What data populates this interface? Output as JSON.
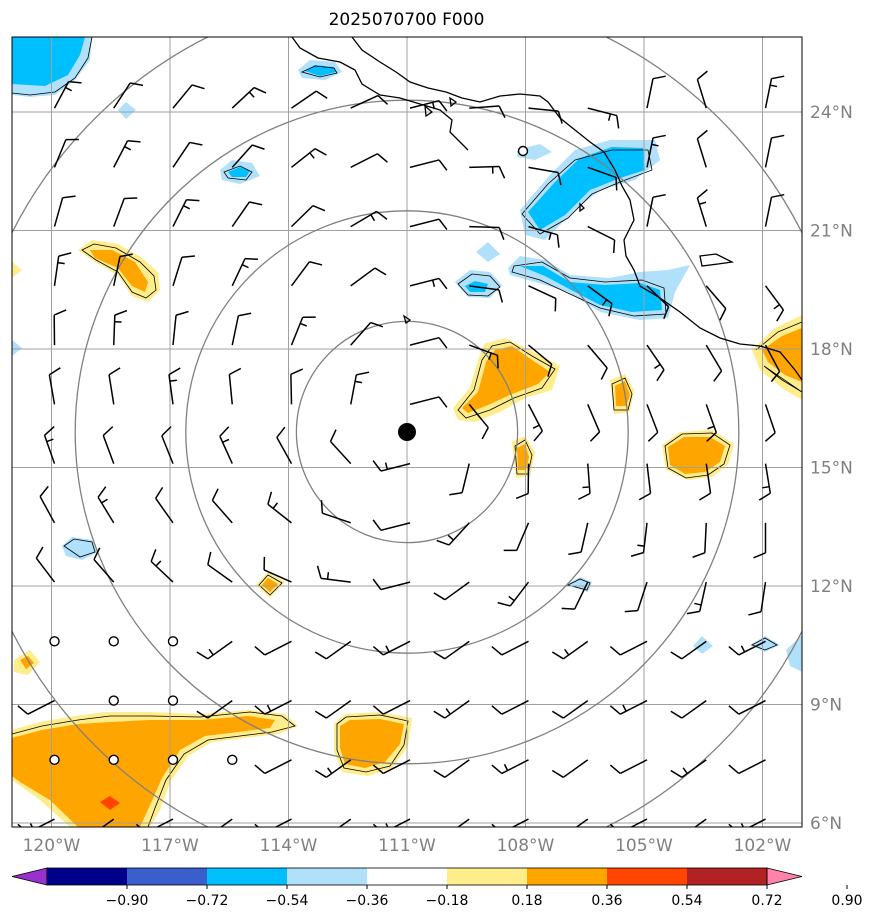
{
  "title": "2025070700 F000",
  "map": {
    "lon_range": [
      -121,
      -101
    ],
    "lat_range": [
      5.9,
      25.9
    ],
    "center": {
      "lon": -111.0,
      "lat": 15.9
    },
    "ring_radii_deg": [
      2.8,
      5.6,
      8.4,
      11.2
    ],
    "lat_ticks": [
      {
        "value": 24,
        "label": "24°N"
      },
      {
        "value": 21,
        "label": "21°N"
      },
      {
        "value": 18,
        "label": "18°N"
      },
      {
        "value": 15,
        "label": "15°N"
      },
      {
        "value": 12,
        "label": "12°N"
      },
      {
        "value": 9,
        "label": "9°N"
      },
      {
        "value": 6,
        "label": "6°N"
      }
    ],
    "lon_ticks": [
      {
        "value": -120,
        "label": "120°W"
      },
      {
        "value": -117,
        "label": "117°W"
      },
      {
        "value": -114,
        "label": "114°W"
      },
      {
        "value": -111,
        "label": "111°W"
      },
      {
        "value": -108,
        "label": "108°W"
      },
      {
        "value": -105,
        "label": "105°W"
      },
      {
        "value": -102,
        "label": "102°W"
      }
    ],
    "colors": {
      "grid": "#a0a0a0",
      "rings": "#808080",
      "coast": "#000000",
      "neg_strong": "#00bfff",
      "neg_light": "#b0e0fa",
      "pos_light": "#ffec8b",
      "pos_strong": "#ffa500",
      "pos_red": "#ff4500"
    }
  },
  "colorbar": {
    "bins": [
      {
        "color": "#9932cc"
      },
      {
        "color": "#00008b"
      },
      {
        "color": "#3a5fcd"
      },
      {
        "color": "#00bfff"
      },
      {
        "color": "#b0e0fa"
      },
      {
        "color": "#ffffff"
      },
      {
        "color": "#ffec8b"
      },
      {
        "color": "#ffa500"
      },
      {
        "color": "#ff4500"
      },
      {
        "color": "#b22222"
      },
      {
        "color": "#ff82ab"
      }
    ],
    "tick_labels": [
      "−0.90",
      "−0.72",
      "−0.54",
      "−0.36",
      "−0.18",
      "0.18",
      "0.36",
      "0.54",
      "0.72",
      "0.90"
    ]
  }
}
